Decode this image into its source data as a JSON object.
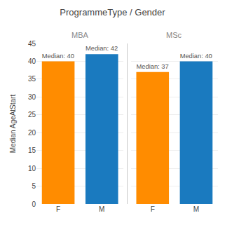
{
  "title": "ProgrammeType / Gender",
  "chart_data": [
    {
      "type": "bar",
      "title": "MBA",
      "ylabel": "Median AgeAtStart",
      "categories": [
        "F",
        "M"
      ],
      "values": [
        40,
        42
      ],
      "value_labels": [
        "Median: 40",
        "Median: 42"
      ],
      "data_labels": true,
      "colors": [
        "#FF8C00",
        "#1A7ABF"
      ],
      "ylim": [
        0,
        45
      ],
      "yticks": [
        0,
        5,
        10,
        15,
        20,
        25,
        30,
        35,
        40,
        45
      ],
      "grid": true
    },
    {
      "type": "bar",
      "title": "MSc",
      "categories": [
        "F",
        "M"
      ],
      "values": [
        37,
        40
      ],
      "value_labels": [
        "Median: 37",
        "Median: 40"
      ],
      "data_labels": true,
      "colors": [
        "#FF8C00",
        "#1A7ABF"
      ],
      "ylim": [
        0,
        45
      ],
      "yticks": [
        0,
        5,
        10,
        15,
        20,
        25,
        30,
        35,
        40,
        45
      ],
      "grid": true,
      "tick_labels": "x"
    }
  ]
}
